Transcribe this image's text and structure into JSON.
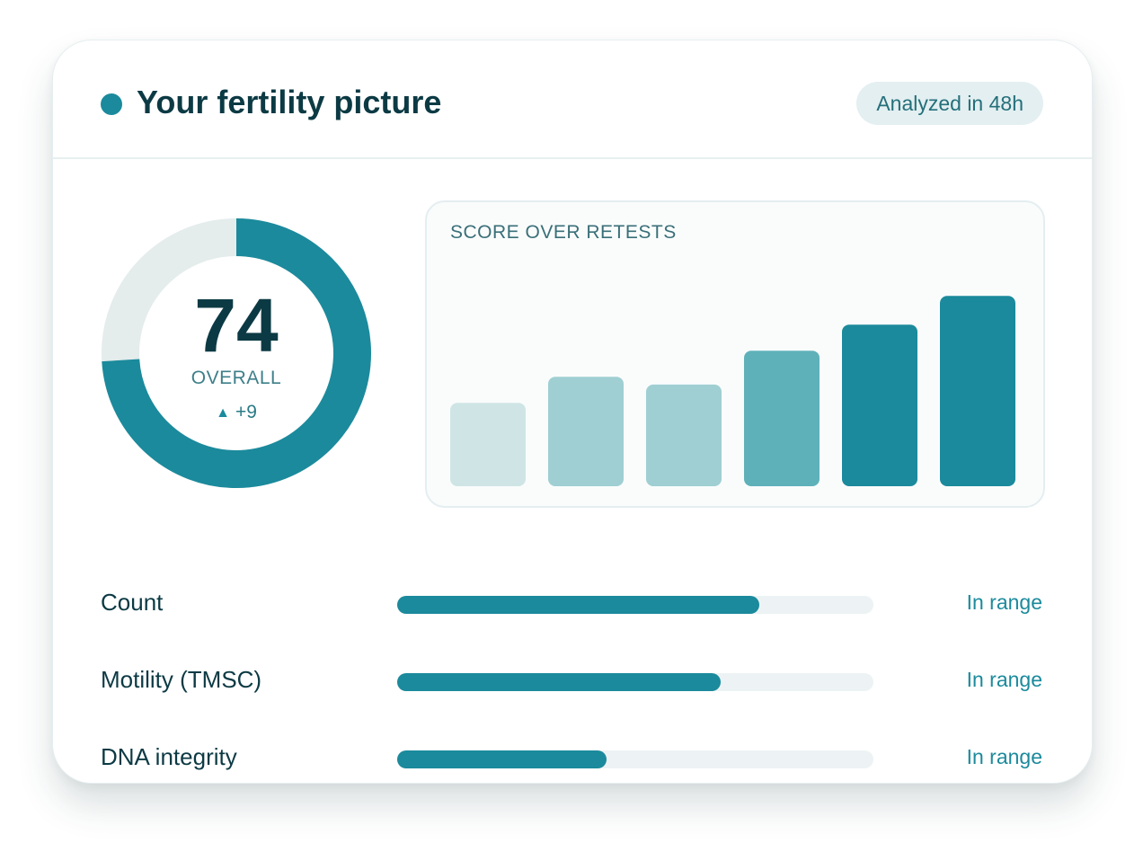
{
  "header": {
    "title": "Your fertility picture",
    "badge": "Analyzed in 48h"
  },
  "score": {
    "value": "74",
    "fraction": 0.74,
    "label": "OVERALL",
    "delta": "+9"
  },
  "colors": {
    "accent": "#1b8a9c",
    "track": "#e4ecec",
    "text_dark": "#0c3a44"
  },
  "chart_data": {
    "type": "bar",
    "title": "SCORE OVER RETESTS",
    "values": [
      32,
      42,
      39,
      52,
      62,
      73
    ],
    "ylim": [
      0,
      100
    ],
    "bar_colors": [
      "#cfe5e5",
      "#9fcfd2",
      "#9fcfd2",
      "#5fb1b9",
      "#1b8a9c",
      "#1b8a9c"
    ]
  },
  "metrics": [
    {
      "label": "Count",
      "value": 0.76,
      "status": "In range"
    },
    {
      "label": "Motility (TMSC)",
      "value": 0.68,
      "status": "In range"
    },
    {
      "label": "DNA integrity",
      "value": 0.44,
      "status": "In range"
    }
  ]
}
